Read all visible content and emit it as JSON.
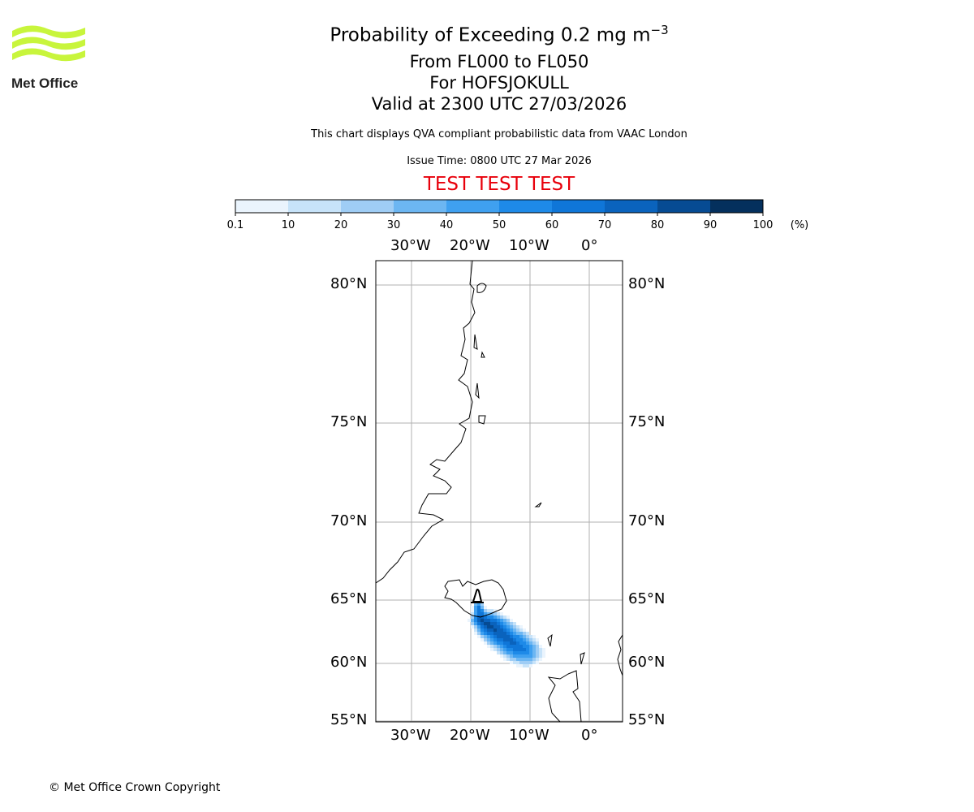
{
  "logo": {
    "text": "Met Office",
    "color": "#c8f53c"
  },
  "title": {
    "main": "Probability of Exceeding 0.2 mg m",
    "sup": "−3",
    "line2": "From FL000 to FL050",
    "line3": "For HOFSJOKULL",
    "line4": "Valid at 2300 UTC 27/03/2026"
  },
  "subtitle": "This chart displays QVA compliant probabilistic data from VAAC London",
  "issue_time": "Issue Time: 0800 UTC 27 Mar 2026",
  "test_banner": "TEST TEST TEST",
  "test_color": "#e8000b",
  "colorbar": {
    "ticks": [
      "0.1",
      "10",
      "20",
      "30",
      "40",
      "50",
      "60",
      "70",
      "80",
      "90",
      "100"
    ],
    "unit": "(%)",
    "colors": [
      "#eaf4fd",
      "#c7e3f9",
      "#9fcdf5",
      "#6cb6f2",
      "#3fa0f0",
      "#1e8ae8",
      "#0f76d8",
      "#0a63bd",
      "#064b93",
      "#04305d"
    ]
  },
  "chart_data": {
    "type": "heatmap",
    "title": "Probability of Exceeding 0.2 mg m-3",
    "lon_ticks": [
      "30°W",
      "20°W",
      "10°W",
      "0°"
    ],
    "lon_values": [
      -30,
      -20,
      -10,
      0
    ],
    "lat_ticks": [
      "80°N",
      "75°N",
      "70°N",
      "65°N",
      "60°N",
      "55°N"
    ],
    "lat_values": [
      80,
      75,
      70,
      65,
      60,
      55
    ],
    "volcano": {
      "name": "HOFSJOKULL",
      "lon": -19,
      "lat": 65
    },
    "plume_axis": [
      {
        "lon": -19,
        "lat": 64.6,
        "peak": 60,
        "w": 0.4
      },
      {
        "lon": -18.5,
        "lat": 63.6,
        "peak": 80,
        "w": 0.8
      },
      {
        "lon": -17,
        "lat": 63.1,
        "peak": 85,
        "w": 1.1
      },
      {
        "lon": -15.5,
        "lat": 62.6,
        "peak": 80,
        "w": 1.2
      },
      {
        "lon": -14,
        "lat": 62.0,
        "peak": 75,
        "w": 1.2
      },
      {
        "lon": -12.5,
        "lat": 61.5,
        "peak": 70,
        "w": 1.2
      },
      {
        "lon": -11,
        "lat": 61.1,
        "peak": 60,
        "w": 1.1
      },
      {
        "lon": -9.5,
        "lat": 60.9,
        "peak": 30,
        "w": 0.7
      }
    ]
  },
  "copyright": "© Met Office Crown Copyright"
}
